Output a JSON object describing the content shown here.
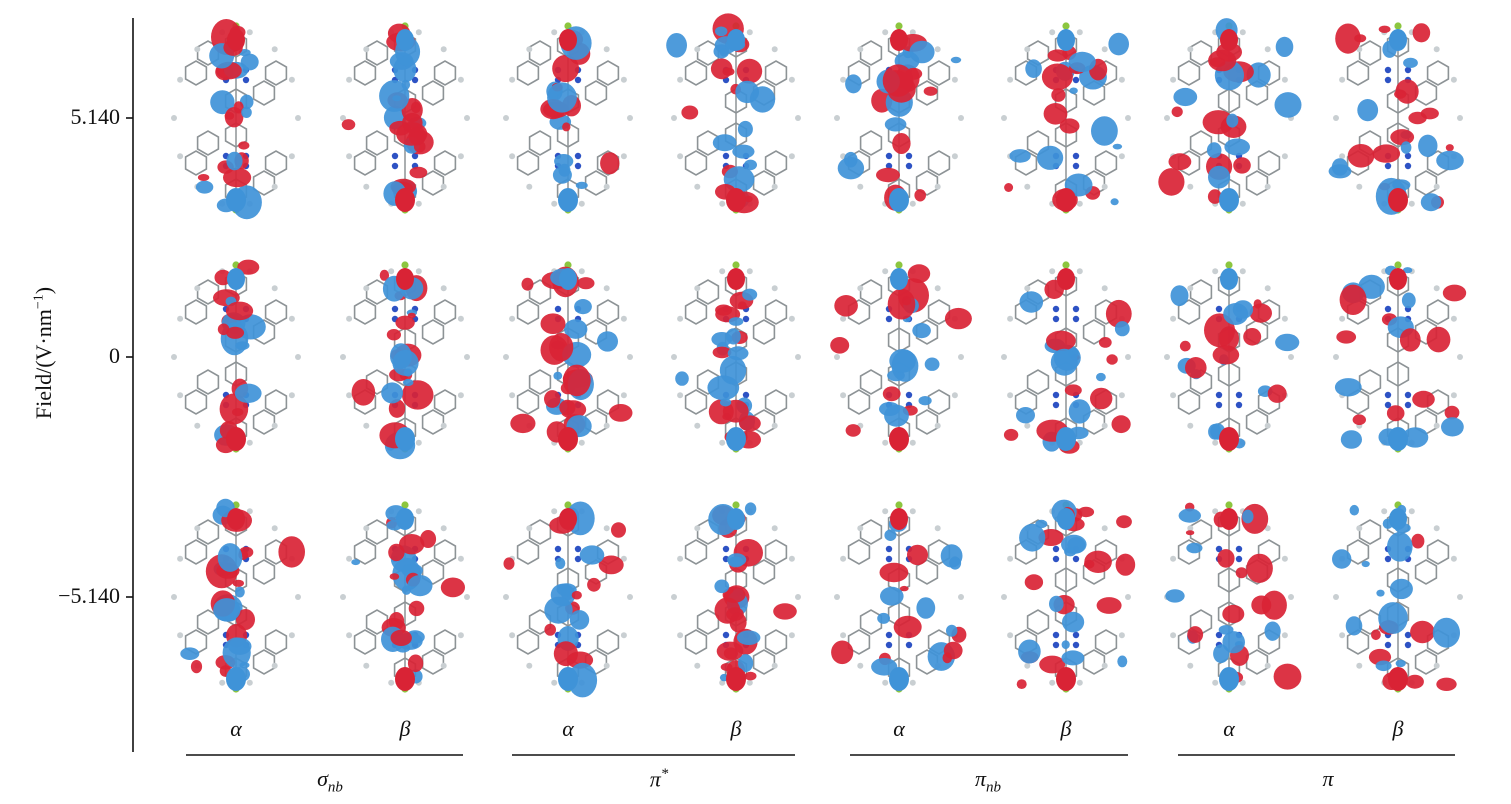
{
  "y_axis": {
    "label_main": "Field/(V·nm",
    "label_exp": "−1",
    "label_close": ")",
    "ticks": [
      "5.140",
      "0",
      "−5.140"
    ]
  },
  "rows": [
    "5.140",
    "0",
    "−5.140"
  ],
  "groups": [
    {
      "name": "σ",
      "sub": "nb",
      "sup": "",
      "spins": [
        "α",
        "β"
      ]
    },
    {
      "name": "π",
      "sub": "",
      "sup": "*",
      "spins": [
        "α",
        "β"
      ]
    },
    {
      "name": "π",
      "sub": "nb",
      "sup": "",
      "spins": [
        "α",
        "β"
      ]
    },
    {
      "name": "π",
      "sub": "",
      "sup": "",
      "spins": [
        "α",
        "β"
      ]
    }
  ],
  "colors": {
    "positive_lobe": "#d92335",
    "negative_lobe": "#3f93d8",
    "carbon": "#8d9396",
    "hydrogen": "#c9cfd2",
    "nitrogen": "#2d52c4",
    "chlorine": "#8cc63f",
    "axis": "#111111"
  }
}
